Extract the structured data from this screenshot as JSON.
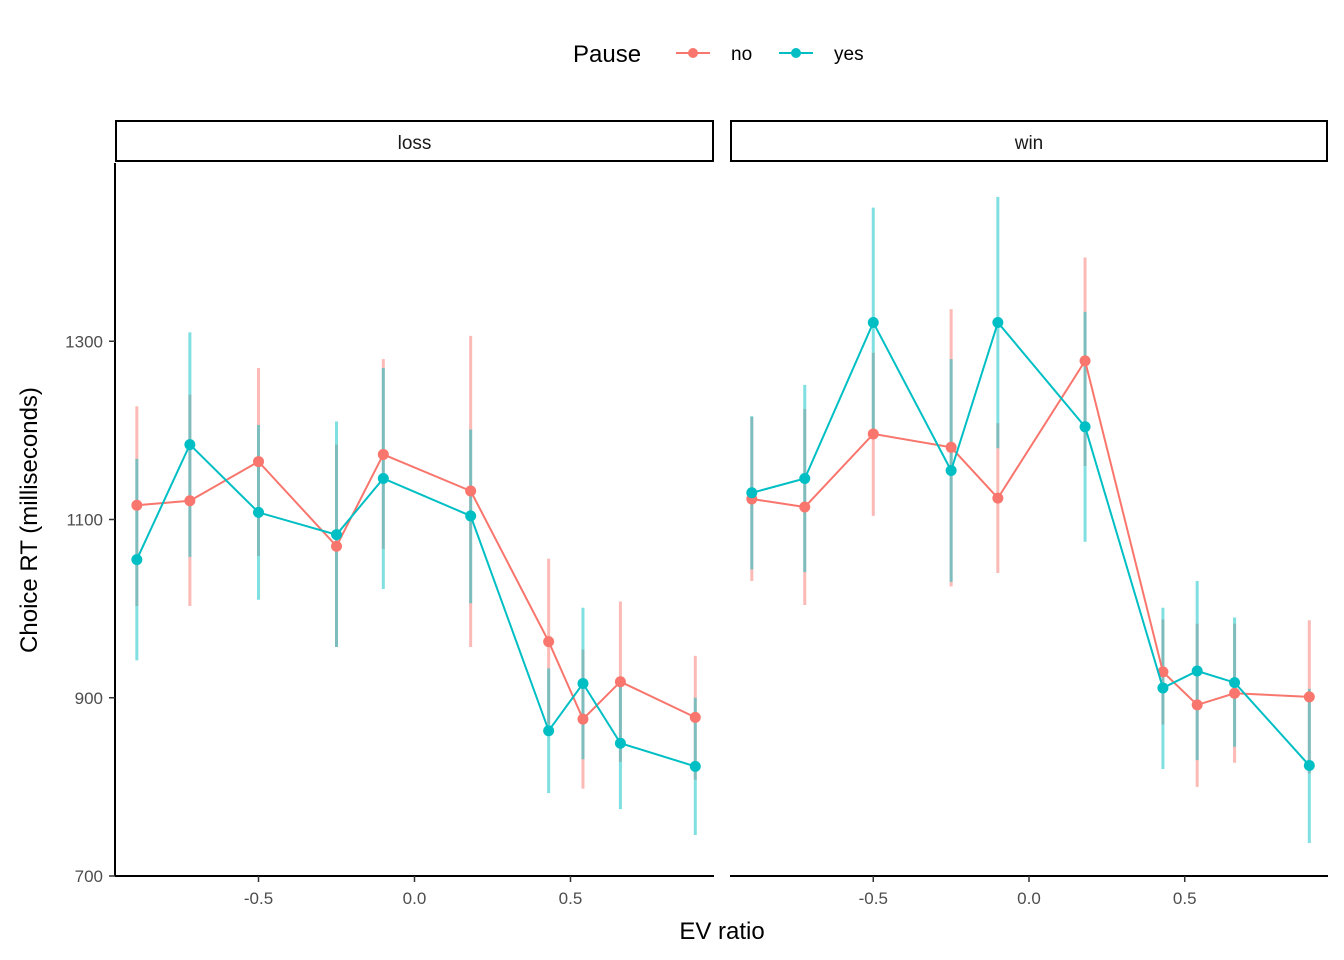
{
  "chart_data": {
    "type": "line",
    "xlabel": "EV ratio",
    "ylabel": "Choice RT (milliseconds)",
    "xlim": [
      -0.96,
      0.96
    ],
    "ylim": [
      700,
      1500
    ],
    "xticks": [
      {
        "value": -0.5,
        "label": "-0.5"
      },
      {
        "value": 0.0,
        "label": "0.0"
      },
      {
        "value": 0.5,
        "label": "0.5"
      }
    ],
    "yticks": [
      {
        "value": 700,
        "label": "700"
      },
      {
        "value": 900,
        "label": "900"
      },
      {
        "value": 1100,
        "label": "1100"
      },
      {
        "value": 1300,
        "label": "1300"
      }
    ],
    "legend": {
      "title": "Pause",
      "position": "top",
      "entries": [
        "no",
        "yes"
      ]
    },
    "colors": {
      "no": "#F8766D",
      "yes": "#00BFC4"
    },
    "panels": [
      {
        "label": "loss",
        "series": [
          {
            "name": "no",
            "points": [
              {
                "x": -0.89,
                "y": 1116,
                "lo": 1003,
                "hi": 1227
              },
              {
                "x": -0.72,
                "y": 1121,
                "lo": 1003,
                "hi": 1240
              },
              {
                "x": -0.5,
                "y": 1165,
                "lo": 1059,
                "hi": 1270
              },
              {
                "x": -0.25,
                "y": 1070,
                "lo": 957,
                "hi": 1184
              },
              {
                "x": -0.1,
                "y": 1173,
                "lo": 1067,
                "hi": 1280
              },
              {
                "x": 0.18,
                "y": 1132,
                "lo": 957,
                "hi": 1306
              },
              {
                "x": 0.43,
                "y": 963,
                "lo": 870,
                "hi": 1056
              },
              {
                "x": 0.54,
                "y": 876,
                "lo": 798,
                "hi": 954
              },
              {
                "x": 0.66,
                "y": 918,
                "lo": 828,
                "hi": 1008
              },
              {
                "x": 0.9,
                "y": 878,
                "lo": 808,
                "hi": 947
              }
            ]
          },
          {
            "name": "yes",
            "points": [
              {
                "x": -0.89,
                "y": 1055,
                "lo": 942,
                "hi": 1168
              },
              {
                "x": -0.72,
                "y": 1184,
                "lo": 1058,
                "hi": 1310
              },
              {
                "x": -0.5,
                "y": 1108,
                "lo": 1010,
                "hi": 1206
              },
              {
                "x": -0.25,
                "y": 1083,
                "lo": 957,
                "hi": 1210
              },
              {
                "x": -0.1,
                "y": 1146,
                "lo": 1022,
                "hi": 1270
              },
              {
                "x": 0.18,
                "y": 1104,
                "lo": 1006,
                "hi": 1201
              },
              {
                "x": 0.43,
                "y": 863,
                "lo": 793,
                "hi": 933
              },
              {
                "x": 0.54,
                "y": 916,
                "lo": 831,
                "hi": 1001
              },
              {
                "x": 0.66,
                "y": 849,
                "lo": 775,
                "hi": 923
              },
              {
                "x": 0.9,
                "y": 823,
                "lo": 746,
                "hi": 900
              }
            ]
          }
        ]
      },
      {
        "label": "win",
        "series": [
          {
            "name": "no",
            "points": [
              {
                "x": -0.89,
                "y": 1123,
                "lo": 1031,
                "hi": 1215
              },
              {
                "x": -0.72,
                "y": 1114,
                "lo": 1004,
                "hi": 1224
              },
              {
                "x": -0.5,
                "y": 1196,
                "lo": 1104,
                "hi": 1287
              },
              {
                "x": -0.25,
                "y": 1181,
                "lo": 1025,
                "hi": 1336
              },
              {
                "x": -0.1,
                "y": 1124,
                "lo": 1040,
                "hi": 1208
              },
              {
                "x": 0.18,
                "y": 1278,
                "lo": 1160,
                "hi": 1394
              },
              {
                "x": 0.43,
                "y": 929,
                "lo": 870,
                "hi": 988
              },
              {
                "x": 0.54,
                "y": 892,
                "lo": 800,
                "hi": 983
              },
              {
                "x": 0.66,
                "y": 905,
                "lo": 827,
                "hi": 983
              },
              {
                "x": 0.9,
                "y": 901,
                "lo": 815,
                "hi": 987
              }
            ]
          },
          {
            "name": "yes",
            "points": [
              {
                "x": -0.89,
                "y": 1130,
                "lo": 1044,
                "hi": 1216
              },
              {
                "x": -0.72,
                "y": 1146,
                "lo": 1041,
                "hi": 1251
              },
              {
                "x": -0.5,
                "y": 1321,
                "lo": 1193,
                "hi": 1450
              },
              {
                "x": -0.25,
                "y": 1155,
                "lo": 1030,
                "hi": 1280
              },
              {
                "x": -0.1,
                "y": 1321,
                "lo": 1180,
                "hi": 1462
              },
              {
                "x": 0.18,
                "y": 1204,
                "lo": 1075,
                "hi": 1333
              },
              {
                "x": 0.43,
                "y": 911,
                "lo": 820,
                "hi": 1001
              },
              {
                "x": 0.54,
                "y": 930,
                "lo": 830,
                "hi": 1031
              },
              {
                "x": 0.66,
                "y": 917,
                "lo": 845,
                "hi": 990
              },
              {
                "x": 0.9,
                "y": 824,
                "lo": 737,
                "hi": 910
              }
            ]
          }
        ]
      }
    ]
  }
}
